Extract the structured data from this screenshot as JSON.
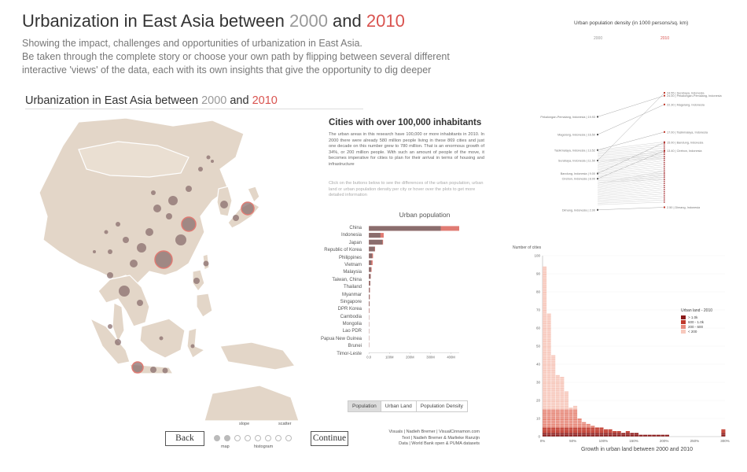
{
  "header": {
    "title_prefix": "Urbanization in East Asia between ",
    "year_from": "2000",
    "title_and": " and ",
    "year_to": "2010",
    "subtitle_line1": "Showing the impact, challenges and opportunities of urbanization in East Asia.",
    "subtitle_line2": "Be taken through the complete story or choose your own path by flipping between several different",
    "subtitle_line3": "interactive 'views' of the data, each with its own insights that give the opportunity to dig deeper"
  },
  "panel": {
    "title_prefix": "Urbanization in East Asia between ",
    "year_from": "2000",
    "title_and": " and ",
    "year_to": "2010"
  },
  "info": {
    "title": "Cities with over 100,000 inhabitants",
    "text": "The urban areas in this research have 100,000 or more inhabitants in 2010. In 2000 there were already 580 million people living in these 869 cities and just one decade on this number grew to 780 million. That is an enormous growth of 34%, or 200 million people. With such an amount of people of the move, it becomes imperative for cities to plan for their arrival in terms of housing and infrastructure",
    "hint": "Click on the buttons below to see the differences of the urban population, urban land or urban population density per city or hover over the plots to get more detailed information"
  },
  "chart_data": [
    {
      "type": "bar",
      "title": "Urban population",
      "categories": [
        "China",
        "Indonesia",
        "Japan",
        "Republic of Korea",
        "Philippines",
        "Vietnam",
        "Malaysia",
        "Taiwan, China",
        "Thailand",
        "Myanmar",
        "Singapore",
        "DPR Korea",
        "Cambodia",
        "Mongolia",
        "Lao PDR",
        "Papua New Guinea",
        "Brunei",
        "Timor-Leste"
      ],
      "series": [
        {
          "name": "2000",
          "values": [
            350,
            56,
            66,
            28,
            16,
            12,
            10,
            8,
            6,
            4,
            3.5,
            3,
            1.5,
            0.8,
            0.5,
            0.3,
            0.2,
            0.1
          ]
        },
        {
          "name": "2010",
          "values": [
            440,
            72,
            69,
            30,
            20,
            18,
            13,
            9,
            7,
            5,
            4.2,
            3.3,
            2,
            1,
            0.7,
            0.4,
            0.25,
            0.15
          ]
        }
      ],
      "xticks": [
        "0.0",
        "100M",
        "200M",
        "300M",
        "400M"
      ],
      "xlim": [
        0,
        440
      ],
      "colors": {
        "2000": "#8a6d6d",
        "2010": "#e07b73"
      }
    },
    {
      "type": "line",
      "title": "Urban population density (in 1000 persons/sq. km)",
      "x": [
        "2000",
        "2010"
      ],
      "series": [
        {
          "name": "Surabaya, Indonesia",
          "values": [
            11.5,
            24.55
          ]
        },
        {
          "name": "Pekalongan-Pemalang, Indonesia",
          "values": [
            19.93,
            24.0
          ]
        },
        {
          "name": "Magelang, Indonesia",
          "values": [
            16.5,
            22.3
          ]
        },
        {
          "name": "Tasikmalaya, Indonesia",
          "values": [
            13.52,
            17.0
          ]
        },
        {
          "name": "Bandung, Indonesia",
          "values": [
            9.0,
            15.0
          ]
        },
        {
          "name": "Cirebon, Indonesia",
          "values": [
            8.0,
            13.4
          ]
        },
        {
          "name": "Dimang, Indonesia",
          "values": [
            2.0,
            2.5
          ]
        }
      ]
    },
    {
      "type": "bar",
      "title": "Number of cities",
      "xlabel": "Growth in urban land between 2000 and 2010",
      "ylabel": "Number of cities",
      "xticks": [
        "0%",
        "50%",
        "100%",
        "150%",
        "200%",
        "250%",
        "300%"
      ],
      "yticks": [
        "0",
        "10",
        "20",
        "30",
        "40",
        "50",
        "60",
        "70",
        "80",
        "90",
        "100"
      ],
      "ylim": [
        0,
        100
      ],
      "categories": [
        "0%",
        "5%",
        "10%",
        "15%",
        "20%",
        "25%",
        "30%",
        "35%",
        "40%",
        "45%",
        "50%",
        "55%",
        "60%",
        "65%",
        "70%",
        "75%",
        "80%",
        "85%",
        "90%",
        "95%",
        "100%",
        "110%",
        "120%",
        "130%",
        "140%",
        "150%",
        "175%",
        "200%",
        "250%",
        "300%"
      ],
      "values": [
        94,
        68,
        45,
        34,
        33,
        25,
        16,
        17,
        10,
        8,
        7,
        6,
        5,
        5,
        4,
        4,
        3,
        3,
        2,
        3,
        2,
        2,
        1,
        1,
        1,
        1,
        1,
        1,
        1,
        4
      ],
      "legend": {
        "title": "Urban land - 2010",
        "items": [
          {
            "label": "> 1.0k",
            "color": "#8b1a1a"
          },
          {
            "label": "600 - 1.0k",
            "color": "#c0392b"
          },
          {
            "label": "200 - 600",
            "color": "#e78a7c"
          },
          {
            "label": "< 200",
            "color": "#f7c9bd"
          }
        ]
      }
    }
  ],
  "controls": {
    "toggles": [
      "Population",
      "Urban Land",
      "Population Density"
    ],
    "back": "Back",
    "continue": "Continue",
    "steps_top": [
      "slope",
      "scatter"
    ],
    "steps_bottom": [
      "map",
      "histogram"
    ]
  },
  "density": {
    "title": "Urban population density (in 1000 persons/sq. km)",
    "col_2000": "2000",
    "col_2010": "2010"
  },
  "credits": {
    "line1": "Visuals | Nadieh Bremer | VisualCinnamon.com",
    "line2": "Text | Nadieh Bremer & Marlieke Ranzijn",
    "line3": "Data | World Bank open & PUMA datasets"
  },
  "colors": {
    "accent": "#d9534f",
    "map_land": "#e3d6c8",
    "city": "#8a6d6d"
  }
}
